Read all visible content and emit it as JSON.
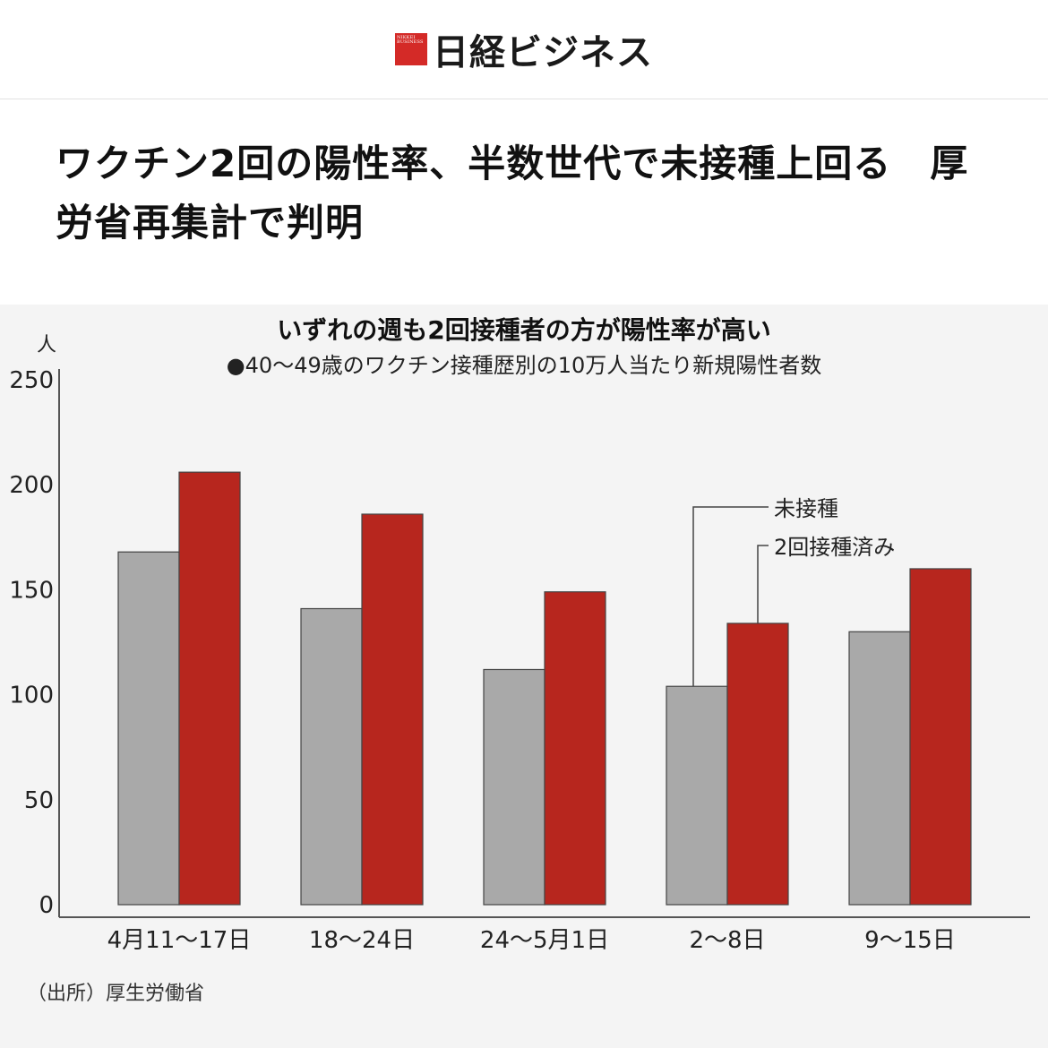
{
  "masthead": {
    "logo_text": "日経ビジネス",
    "logo_small": "NIKKEI BUSINESS",
    "logo_color": "#d42a27"
  },
  "headline": "ワクチン2回の陽性率、半数世代で未接種上回る　厚労省再集計で判明",
  "chart_data": {
    "type": "bar",
    "title": "いずれの週も2回接種者の方が陽性率が高い",
    "subtitle": "●40～49歳のワクチン接種歴別の10万人当たり新規陽性者数",
    "ylabel": "人",
    "ylim": [
      0,
      250
    ],
    "yticks": [
      0,
      50,
      100,
      150,
      200,
      250
    ],
    "categories": [
      "4月11～17日",
      "18～24日",
      "24～5月1日",
      "2～8日",
      "9～15日"
    ],
    "series": [
      {
        "name": "未接種",
        "color": "#a9a9a9",
        "values": [
          168,
          141,
          112,
          104,
          130
        ]
      },
      {
        "name": "2回接種済み",
        "color": "#b7261e",
        "values": [
          206,
          186,
          149,
          134,
          160
        ]
      }
    ],
    "grid": false,
    "legend": "callout-labels",
    "source": "（出所）厚生労働省"
  }
}
